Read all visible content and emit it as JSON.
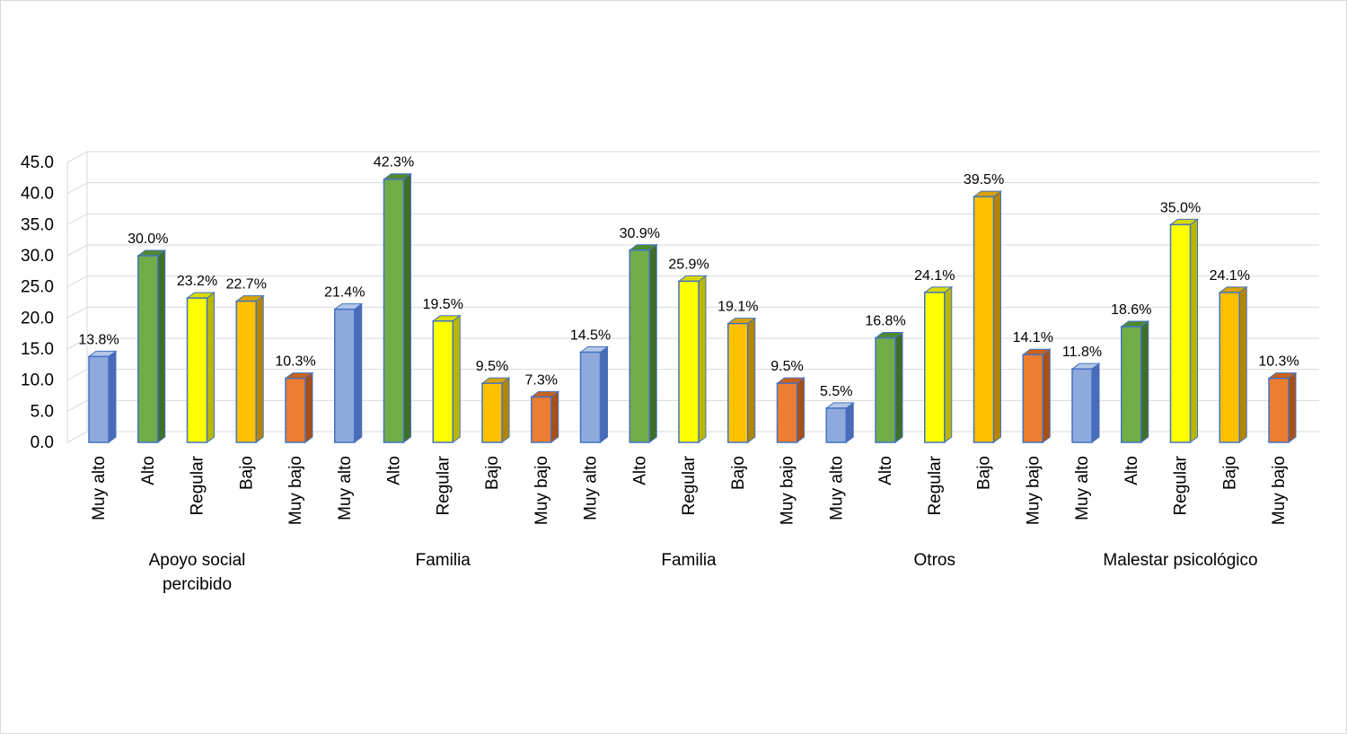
{
  "chart_data": {
    "type": "bar",
    "style": "3d-clustered-column",
    "ylim": [
      0,
      45
    ],
    "yticks": [
      "0.0",
      "5.0",
      "10.0",
      "15.0",
      "20.0",
      "25.0",
      "30.0",
      "35.0",
      "40.0",
      "45.0"
    ],
    "grid": true,
    "legend": "none",
    "groups": [
      {
        "label": "Apoyo social percibido",
        "label_lines": [
          "Apoyo social",
          "percibido"
        ],
        "categories": [
          "Muy alto",
          "Alto",
          "Regular",
          "Bajo",
          "Muy bajo"
        ],
        "values": [
          13.8,
          30.0,
          23.2,
          22.7,
          10.3
        ],
        "data_labels": [
          "13.8%",
          "30.0%",
          "23.2%",
          "22.7%",
          "10.3%"
        ]
      },
      {
        "label": "Familia",
        "label_lines": [
          "Familia"
        ],
        "categories": [
          "Muy alto",
          "Alto",
          "Regular",
          "Bajo",
          "Muy bajo"
        ],
        "values": [
          21.4,
          42.3,
          19.5,
          9.5,
          7.3
        ],
        "data_labels": [
          "21.4%",
          "42.3%",
          "19.5%",
          "9.5%",
          "7.3%"
        ]
      },
      {
        "label": "Familia",
        "label_lines": [
          "Familia"
        ],
        "categories": [
          "Muy alto",
          "Alto",
          "Regular",
          "Bajo",
          "Muy bajo"
        ],
        "values": [
          14.5,
          30.9,
          25.9,
          19.1,
          9.5
        ],
        "data_labels": [
          "14.5%",
          "30.9%",
          "25.9%",
          "19.1%",
          "9.5%"
        ]
      },
      {
        "label": "Otros",
        "label_lines": [
          "Otros"
        ],
        "categories": [
          "Muy alto",
          "Alto",
          "Regular",
          "Bajo",
          "Muy bajo"
        ],
        "values": [
          5.5,
          16.8,
          24.1,
          39.5,
          14.1
        ],
        "data_labels": [
          "5.5%",
          "16.8%",
          "24.1%",
          "39.5%",
          "14.1%"
        ]
      },
      {
        "label": "Malestar psicológico",
        "label_lines": [
          "Malestar psicológico"
        ],
        "categories": [
          "Muy alto",
          "Alto",
          "Regular",
          "Bajo",
          "Muy bajo"
        ],
        "values": [
          11.8,
          18.6,
          35.0,
          24.1,
          10.3
        ],
        "data_labels": [
          "11.8%",
          "18.6%",
          "35.0%",
          "24.1%",
          "10.3%"
        ]
      }
    ],
    "category_colors": {
      "Muy alto": {
        "front": "#8ea9db",
        "side": "#4a6bb5",
        "top": "#b4c7e7"
      },
      "Alto": {
        "front": "#70ad47",
        "side": "#3f6f27",
        "top": "#4f8a2f"
      },
      "Regular": {
        "front": "#ffff00",
        "side": "#b8b800",
        "top": "#d9d900"
      },
      "Bajo": {
        "front": "#ffc000",
        "side": "#b38600",
        "top": "#d9a300"
      },
      "Muy bajo": {
        "front": "#ed7d31",
        "side": "#a84f15",
        "top": "#c9621c"
      }
    },
    "outline_color": "#4472c4"
  }
}
